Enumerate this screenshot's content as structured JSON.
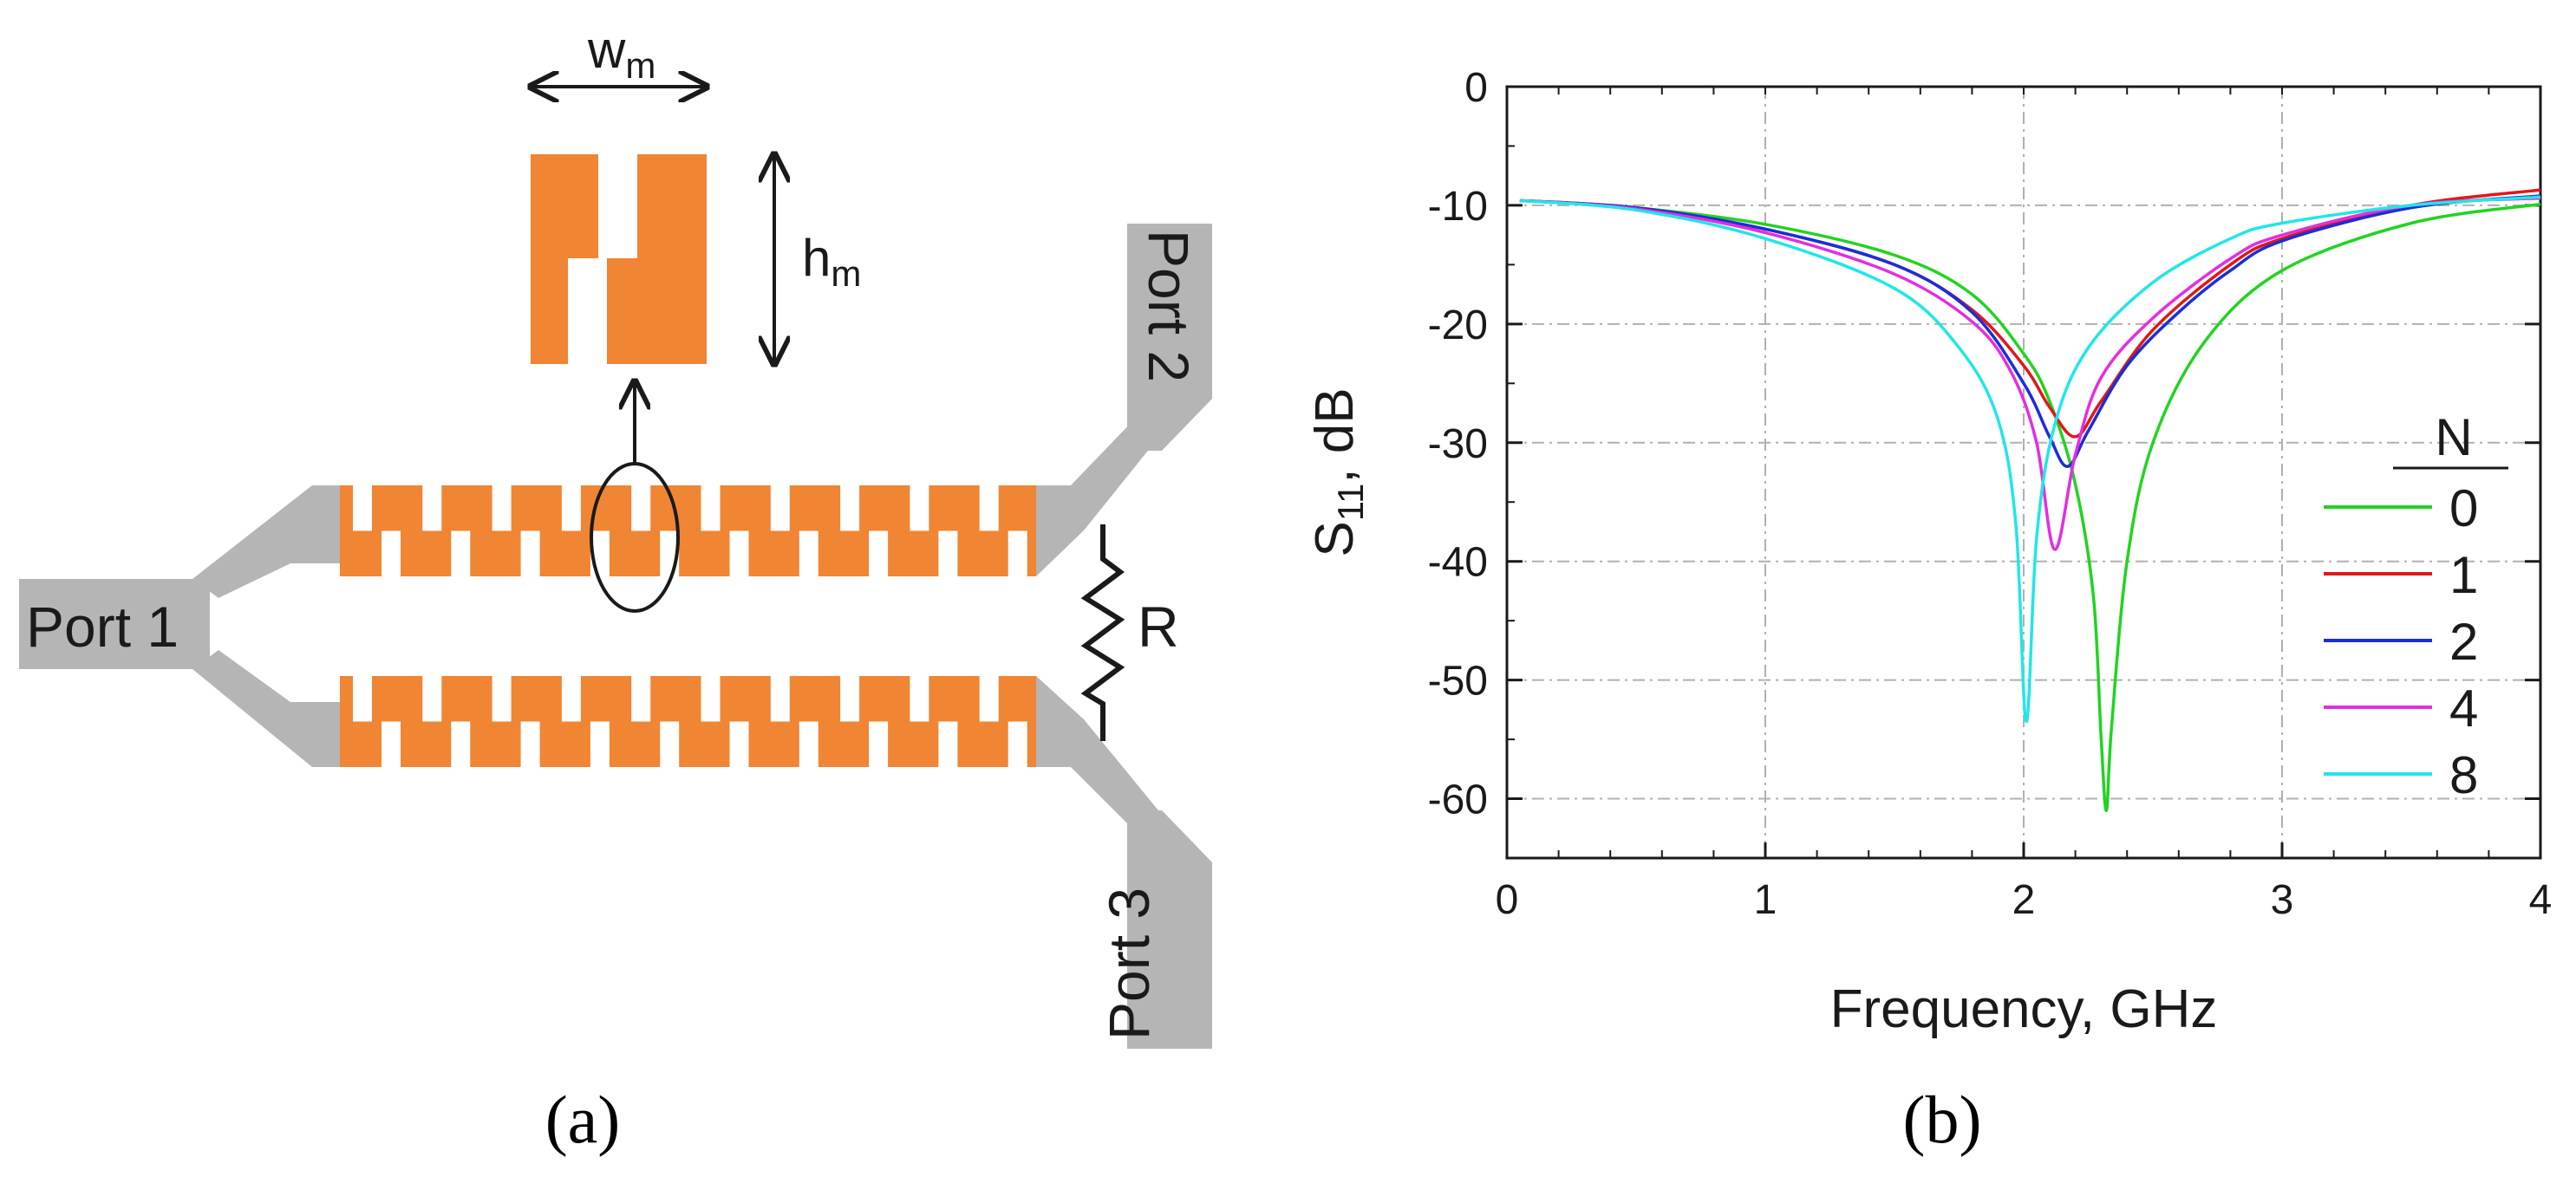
{
  "figure": {
    "panel_a_caption": "(a)",
    "panel_b_caption": "(b)"
  },
  "diagram": {
    "port1_label": "Port 1",
    "port2_label": "Port 2",
    "port3_label": "Port 3",
    "resistor_label": "R",
    "width_label": "w",
    "width_subscript": "m",
    "height_label": "h",
    "height_subscript": "m",
    "colors": {
      "metal": "#f08533",
      "feed": "#b5b5b5",
      "line": "#1a1a1a"
    }
  },
  "chart_data": {
    "type": "line",
    "xlabel": "Frequency, GHz",
    "ylabel_main": "S",
    "ylabel_sub": "11",
    "ylabel_unit": ", dB",
    "xlim": [
      0,
      4
    ],
    "ylim": [
      -65,
      0
    ],
    "xticks": [
      0,
      1,
      2,
      3,
      4
    ],
    "yticks": [
      0,
      -10,
      -20,
      -30,
      -40,
      -50,
      -60
    ],
    "grid": true,
    "legend_title": "N",
    "legend_position": "right",
    "series": [
      {
        "name": "0",
        "color": "#22d322",
        "f0": 2.32,
        "min": -61,
        "Q": 1.0,
        "points": [
          [
            0.05,
            -9.6
          ],
          [
            0.5,
            -10.2
          ],
          [
            1.0,
            -11.6
          ],
          [
            1.5,
            -14.2
          ],
          [
            1.8,
            -17.5
          ],
          [
            2.0,
            -22.5
          ],
          [
            2.1,
            -26.5
          ],
          [
            2.2,
            -33.5
          ],
          [
            2.27,
            -43.0
          ],
          [
            2.3,
            -55.0
          ],
          [
            2.32,
            -61.0
          ],
          [
            2.34,
            -54.0
          ],
          [
            2.4,
            -40.0
          ],
          [
            2.5,
            -30.0
          ],
          [
            2.7,
            -21.5
          ],
          [
            3.0,
            -15.5
          ],
          [
            3.5,
            -11.5
          ],
          [
            4.0,
            -9.9
          ]
        ]
      },
      {
        "name": "1",
        "color": "#e01818",
        "f0": 2.2,
        "min": -29.5,
        "Q": 1.0,
        "points": [
          [
            0.05,
            -9.6
          ],
          [
            0.5,
            -10.2
          ],
          [
            1.0,
            -12.0
          ],
          [
            1.5,
            -15.0
          ],
          [
            1.8,
            -18.8
          ],
          [
            2.0,
            -23.5
          ],
          [
            2.1,
            -27.0
          ],
          [
            2.2,
            -29.5
          ],
          [
            2.3,
            -26.5
          ],
          [
            2.5,
            -20.5
          ],
          [
            2.8,
            -15.0
          ],
          [
            3.0,
            -12.8
          ],
          [
            3.5,
            -10.0
          ],
          [
            4.0,
            -8.7
          ]
        ]
      },
      {
        "name": "2",
        "color": "#1a2ed8",
        "f0": 2.17,
        "min": -32,
        "Q": 1.0,
        "points": [
          [
            0.05,
            -9.6
          ],
          [
            0.5,
            -10.2
          ],
          [
            1.0,
            -12.0
          ],
          [
            1.5,
            -15.0
          ],
          [
            1.8,
            -19.0
          ],
          [
            2.0,
            -25.0
          ],
          [
            2.1,
            -29.5
          ],
          [
            2.17,
            -32.0
          ],
          [
            2.25,
            -29.0
          ],
          [
            2.4,
            -23.5
          ],
          [
            2.6,
            -19.0
          ],
          [
            2.8,
            -15.5
          ],
          [
            3.0,
            -13.0
          ],
          [
            3.5,
            -10.2
          ],
          [
            4.0,
            -9.2
          ]
        ]
      },
      {
        "name": "4",
        "color": "#e22ee2",
        "f0": 2.12,
        "min": -39,
        "Q": 1.0,
        "points": [
          [
            0.05,
            -9.6
          ],
          [
            0.5,
            -10.3
          ],
          [
            1.0,
            -12.3
          ],
          [
            1.5,
            -15.8
          ],
          [
            1.8,
            -19.8
          ],
          [
            1.95,
            -24.0
          ],
          [
            2.05,
            -30.0
          ],
          [
            2.12,
            -39.0
          ],
          [
            2.2,
            -31.0
          ],
          [
            2.3,
            -24.5
          ],
          [
            2.5,
            -19.5
          ],
          [
            2.8,
            -14.5
          ],
          [
            3.0,
            -12.5
          ],
          [
            3.5,
            -10.0
          ],
          [
            4.0,
            -9.4
          ]
        ]
      },
      {
        "name": "8",
        "color": "#22e6e6",
        "f0": 2.01,
        "min": -53.5,
        "Q": 1.0,
        "points": [
          [
            0.05,
            -9.6
          ],
          [
            0.5,
            -10.4
          ],
          [
            1.0,
            -12.8
          ],
          [
            1.5,
            -17.0
          ],
          [
            1.75,
            -22.0
          ],
          [
            1.9,
            -28.0
          ],
          [
            1.97,
            -37.0
          ],
          [
            2.01,
            -53.5
          ],
          [
            2.05,
            -38.0
          ],
          [
            2.12,
            -28.5
          ],
          [
            2.25,
            -22.0
          ],
          [
            2.5,
            -16.5
          ],
          [
            2.8,
            -12.8
          ],
          [
            3.0,
            -11.5
          ],
          [
            3.5,
            -10.0
          ],
          [
            4.0,
            -9.3
          ]
        ]
      }
    ]
  }
}
